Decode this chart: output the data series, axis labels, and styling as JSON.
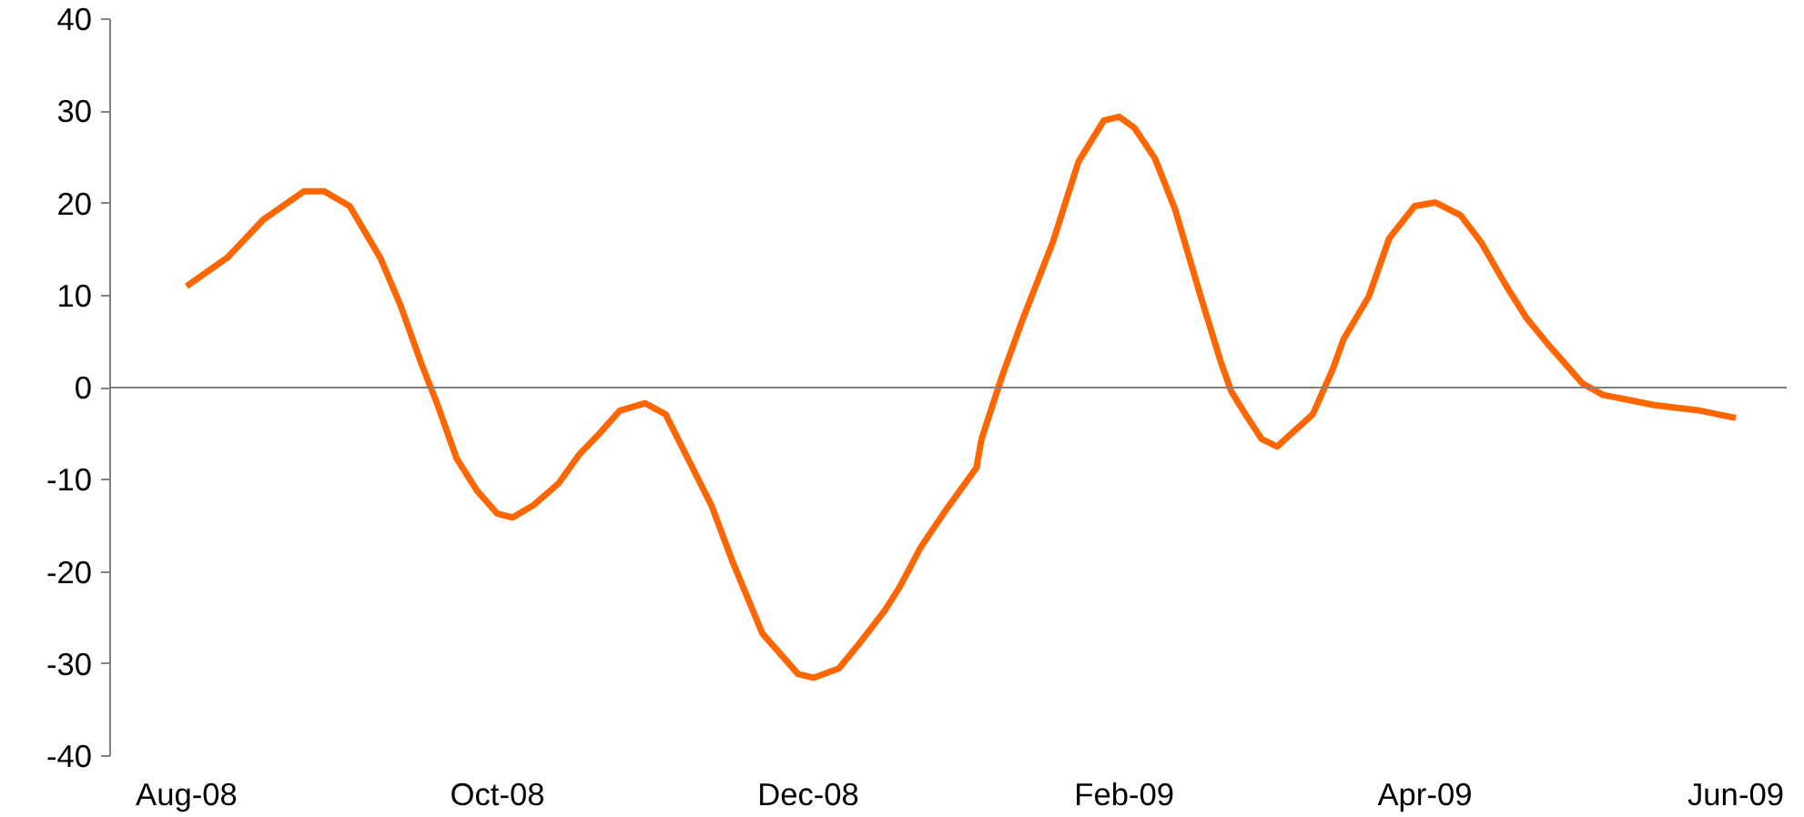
{
  "chart_data": {
    "type": "line",
    "x": [
      "2008-08-01",
      "2008-08-09",
      "2008-08-16",
      "2008-08-24",
      "2008-08-28",
      "2008-09-02",
      "2008-09-08",
      "2008-09-12",
      "2008-09-16",
      "2008-09-19",
      "2008-09-23",
      "2008-09-27",
      "2008-10-01",
      "2008-10-04",
      "2008-10-08",
      "2008-10-13",
      "2008-10-17",
      "2008-10-21",
      "2008-10-25",
      "2008-10-30",
      "2008-11-03",
      "2008-11-07",
      "2008-11-12",
      "2008-11-16",
      "2008-11-22",
      "2008-11-29",
      "2008-12-02",
      "2008-12-07",
      "2008-12-11",
      "2008-12-16",
      "2008-12-19",
      "2008-12-23",
      "2008-12-28",
      "2009-01-03",
      "2009-01-04",
      "2009-01-08",
      "2009-01-12",
      "2009-01-18",
      "2009-01-23",
      "2009-01-28",
      "2009-01-31",
      "2009-02-03",
      "2009-02-07",
      "2009-02-11",
      "2009-02-16",
      "2009-02-20",
      "2009-02-22",
      "2009-02-25",
      "2009-02-28",
      "2009-03-03",
      "2009-03-05",
      "2009-03-10",
      "2009-03-14",
      "2009-03-16",
      "2009-03-21",
      "2009-03-25",
      "2009-03-30",
      "2009-04-03",
      "2009-04-08",
      "2009-04-12",
      "2009-04-17",
      "2009-04-21",
      "2009-04-25",
      "2009-05-02",
      "2009-05-06",
      "2009-05-16",
      "2009-05-25",
      "2009-06-01"
    ],
    "series": [
      {
        "color": "#ff6600",
        "values": [
          11.0,
          14.1,
          18.2,
          21.3,
          21.3,
          19.7,
          14.1,
          8.9,
          2.7,
          -1.5,
          -7.7,
          -11.2,
          -13.7,
          -14.1,
          -12.8,
          -10.4,
          -7.3,
          -5.0,
          -2.5,
          -1.7,
          -2.9,
          -7.3,
          -12.8,
          -18.7,
          -26.7,
          -31.1,
          -31.5,
          -30.5,
          -27.8,
          -24.2,
          -21.6,
          -17.4,
          -13.3,
          -8.7,
          -5.6,
          1.2,
          7.3,
          15.8,
          24.5,
          29.0,
          29.4,
          28.2,
          24.9,
          19.3,
          9.9,
          2.7,
          -0.4,
          -3.1,
          -5.6,
          -6.4,
          -5.4,
          -2.9,
          2.1,
          5.2,
          9.9,
          16.2,
          19.7,
          20.1,
          18.7,
          15.8,
          11.0,
          7.5,
          4.8,
          0.4,
          -0.8,
          -1.9,
          -2.5,
          -3.3
        ]
      }
    ],
    "xlim": [
      "2008-07-17",
      "2009-06-11"
    ],
    "xticks": [
      {
        "value": "2008-08-01",
        "label": "Aug-08"
      },
      {
        "value": "2008-10-01",
        "label": "Oct-08"
      },
      {
        "value": "2008-12-01",
        "label": "Dec-08"
      },
      {
        "value": "2009-02-01",
        "label": "Feb-09"
      },
      {
        "value": "2009-04-01",
        "label": "Apr-09"
      },
      {
        "value": "2009-06-01",
        "label": "Jun-09"
      }
    ],
    "ylim": [
      -40,
      40
    ],
    "yticks": [
      -40,
      -30,
      -20,
      -10,
      0,
      10,
      20,
      30,
      40
    ],
    "ref_lines": [
      {
        "axis": "y",
        "value": 0,
        "color": "#808080"
      }
    ],
    "line_style": "solid"
  }
}
